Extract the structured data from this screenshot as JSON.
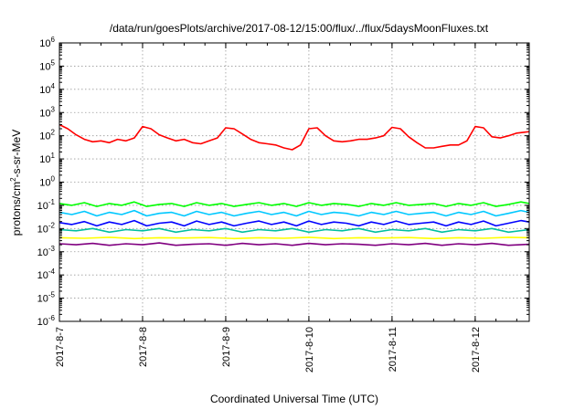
{
  "chart_data": {
    "type": "line",
    "title": "/data/run/goesPlots/archive/2017-08-12/15:00/flux/../flux/5daysMoonFluxes.txt",
    "xlabel": "Coordinated Universal Time (UTC)",
    "ylabel_parts": {
      "base": "protons/cm",
      "sup": "2",
      "rest": "-s-sr-MeV"
    },
    "y_scale": "log",
    "ylim": [
      1e-06,
      1000000.0
    ],
    "xlim_days": [
      0,
      5.65
    ],
    "grid": true,
    "legend": "none",
    "x_ticks": [
      {
        "day": 0,
        "label": "2017-8-7"
      },
      {
        "day": 1,
        "label": "2017-8-8"
      },
      {
        "day": 2,
        "label": "2017-8-9"
      },
      {
        "day": 3,
        "label": "2017-8-10"
      },
      {
        "day": 4,
        "label": "2017-8-11"
      },
      {
        "day": 5,
        "label": "2017-8-12"
      }
    ],
    "y_ticks": [
      {
        "exp": -6,
        "base": "10",
        "sup": "-6"
      },
      {
        "exp": -5,
        "base": "10",
        "sup": "-5"
      },
      {
        "exp": -4,
        "base": "10",
        "sup": "-4"
      },
      {
        "exp": -3,
        "base": "10",
        "sup": "-3"
      },
      {
        "exp": -2,
        "base": "10",
        "sup": "-2"
      },
      {
        "exp": -1,
        "base": "10",
        "sup": "-1"
      },
      {
        "exp": 0,
        "base": "10",
        "sup": "0"
      },
      {
        "exp": 1,
        "base": "10",
        "sup": "1"
      },
      {
        "exp": 2,
        "base": "10",
        "sup": "2"
      },
      {
        "exp": 3,
        "base": "10",
        "sup": "3"
      },
      {
        "exp": 4,
        "base": "10",
        "sup": "4"
      },
      {
        "exp": 5,
        "base": "10",
        "sup": "5"
      },
      {
        "exp": 6,
        "base": "10",
        "sup": "6"
      }
    ],
    "series": [
      {
        "color": "#ff0000",
        "x": [
          0,
          0.1,
          0.2,
          0.3,
          0.4,
          0.5,
          0.6,
          0.7,
          0.8,
          0.9,
          1.0,
          1.1,
          1.2,
          1.3,
          1.4,
          1.5,
          1.6,
          1.7,
          1.8,
          1.9,
          2.0,
          2.1,
          2.2,
          2.3,
          2.4,
          2.5,
          2.6,
          2.7,
          2.8,
          2.9,
          3.0,
          3.1,
          3.2,
          3.3,
          3.4,
          3.5,
          3.6,
          3.7,
          3.8,
          3.9,
          4.0,
          4.1,
          4.2,
          4.3,
          4.4,
          4.5,
          4.6,
          4.7,
          4.8,
          4.9,
          5.0,
          5.1,
          5.2,
          5.3,
          5.4,
          5.5,
          5.65
        ],
        "values": [
          300,
          200,
          110,
          70,
          55,
          60,
          50,
          70,
          60,
          80,
          250,
          200,
          110,
          80,
          60,
          70,
          50,
          45,
          60,
          80,
          220,
          200,
          120,
          70,
          50,
          45,
          40,
          30,
          25,
          40,
          200,
          220,
          100,
          60,
          55,
          60,
          70,
          70,
          80,
          100,
          230,
          200,
          90,
          50,
          30,
          30,
          35,
          40,
          40,
          60,
          250,
          220,
          90,
          80,
          100,
          130,
          150
        ]
      },
      {
        "color": "#00ff00",
        "x": [
          0,
          0.15,
          0.3,
          0.45,
          0.6,
          0.75,
          0.9,
          1.05,
          1.2,
          1.35,
          1.5,
          1.65,
          1.8,
          1.95,
          2.1,
          2.25,
          2.4,
          2.55,
          2.7,
          2.85,
          3.0,
          3.15,
          3.3,
          3.45,
          3.6,
          3.75,
          3.9,
          4.05,
          4.2,
          4.35,
          4.5,
          4.65,
          4.8,
          4.95,
          5.1,
          5.25,
          5.4,
          5.55,
          5.65
        ],
        "values": [
          0.12,
          0.1,
          0.13,
          0.09,
          0.12,
          0.1,
          0.14,
          0.09,
          0.11,
          0.12,
          0.09,
          0.13,
          0.1,
          0.12,
          0.09,
          0.11,
          0.13,
          0.1,
          0.12,
          0.09,
          0.13,
          0.1,
          0.12,
          0.11,
          0.09,
          0.12,
          0.1,
          0.13,
          0.1,
          0.11,
          0.12,
          0.09,
          0.12,
          0.1,
          0.13,
          0.09,
          0.11,
          0.14,
          0.12
        ]
      },
      {
        "color": "#00c8ff",
        "x": [
          0,
          0.15,
          0.3,
          0.45,
          0.6,
          0.75,
          0.9,
          1.05,
          1.2,
          1.35,
          1.5,
          1.65,
          1.8,
          1.95,
          2.1,
          2.25,
          2.4,
          2.55,
          2.7,
          2.85,
          3.0,
          3.15,
          3.3,
          3.45,
          3.6,
          3.75,
          3.9,
          4.05,
          4.2,
          4.35,
          4.5,
          4.65,
          4.8,
          4.95,
          5.1,
          5.25,
          5.4,
          5.55,
          5.65
        ],
        "values": [
          0.05,
          0.04,
          0.055,
          0.035,
          0.05,
          0.04,
          0.06,
          0.035,
          0.045,
          0.05,
          0.035,
          0.055,
          0.04,
          0.05,
          0.035,
          0.045,
          0.055,
          0.04,
          0.05,
          0.035,
          0.055,
          0.04,
          0.05,
          0.045,
          0.035,
          0.05,
          0.04,
          0.055,
          0.04,
          0.045,
          0.05,
          0.035,
          0.05,
          0.04,
          0.055,
          0.035,
          0.045,
          0.06,
          0.05
        ]
      },
      {
        "color": "#0000ff",
        "x": [
          0,
          0.15,
          0.3,
          0.45,
          0.6,
          0.75,
          0.9,
          1.05,
          1.2,
          1.35,
          1.5,
          1.65,
          1.8,
          1.95,
          2.1,
          2.25,
          2.4,
          2.55,
          2.7,
          2.85,
          3.0,
          3.15,
          3.3,
          3.45,
          3.6,
          3.75,
          3.9,
          4.05,
          4.2,
          4.35,
          4.5,
          4.65,
          4.8,
          4.95,
          5.1,
          5.25,
          5.4,
          5.55,
          5.65
        ],
        "values": [
          0.018,
          0.015,
          0.02,
          0.013,
          0.019,
          0.015,
          0.022,
          0.013,
          0.017,
          0.019,
          0.013,
          0.021,
          0.015,
          0.019,
          0.013,
          0.017,
          0.021,
          0.015,
          0.019,
          0.013,
          0.021,
          0.015,
          0.019,
          0.017,
          0.013,
          0.019,
          0.015,
          0.021,
          0.015,
          0.017,
          0.019,
          0.013,
          0.019,
          0.015,
          0.021,
          0.013,
          0.017,
          0.022,
          0.019
        ]
      },
      {
        "color": "#00bfa0",
        "x": [
          0,
          0.2,
          0.4,
          0.6,
          0.8,
          1.0,
          1.2,
          1.4,
          1.6,
          1.8,
          2.0,
          2.2,
          2.4,
          2.6,
          2.8,
          3.0,
          3.2,
          3.4,
          3.6,
          3.8,
          4.0,
          4.2,
          4.4,
          4.6,
          4.8,
          5.0,
          5.2,
          5.4,
          5.65
        ],
        "values": [
          0.009,
          0.008,
          0.01,
          0.007,
          0.009,
          0.008,
          0.01,
          0.007,
          0.009,
          0.008,
          0.01,
          0.007,
          0.009,
          0.008,
          0.01,
          0.007,
          0.009,
          0.008,
          0.01,
          0.007,
          0.009,
          0.008,
          0.01,
          0.007,
          0.009,
          0.008,
          0.01,
          0.007,
          0.009
        ]
      },
      {
        "color": "#ffff00",
        "x": [
          0,
          0.3,
          0.6,
          0.9,
          1.2,
          1.5,
          1.8,
          2.1,
          2.4,
          2.7,
          3.0,
          3.3,
          3.6,
          3.9,
          4.2,
          4.5,
          4.8,
          5.1,
          5.4,
          5.65
        ],
        "values": [
          0.004,
          0.0038,
          0.0042,
          0.0037,
          0.004,
          0.0039,
          0.0041,
          0.0037,
          0.004,
          0.0038,
          0.0042,
          0.0037,
          0.004,
          0.0039,
          0.0041,
          0.0037,
          0.004,
          0.0038,
          0.0042,
          0.004
        ]
      },
      {
        "color": "#800080",
        "x": [
          0,
          0.2,
          0.4,
          0.6,
          0.8,
          1.0,
          1.2,
          1.4,
          1.6,
          1.8,
          2.0,
          2.2,
          2.4,
          2.6,
          2.8,
          3.0,
          3.2,
          3.4,
          3.6,
          3.8,
          4.0,
          4.2,
          4.4,
          4.6,
          4.8,
          5.0,
          5.2,
          5.4,
          5.65
        ],
        "values": [
          0.0022,
          0.002,
          0.0023,
          0.0019,
          0.0022,
          0.002,
          0.0024,
          0.0019,
          0.0021,
          0.0022,
          0.0019,
          0.0023,
          0.002,
          0.0022,
          0.0019,
          0.0023,
          0.002,
          0.0022,
          0.0021,
          0.0019,
          0.0022,
          0.002,
          0.0023,
          0.0019,
          0.0022,
          0.002,
          0.0023,
          0.0019,
          0.0021
        ]
      }
    ]
  }
}
